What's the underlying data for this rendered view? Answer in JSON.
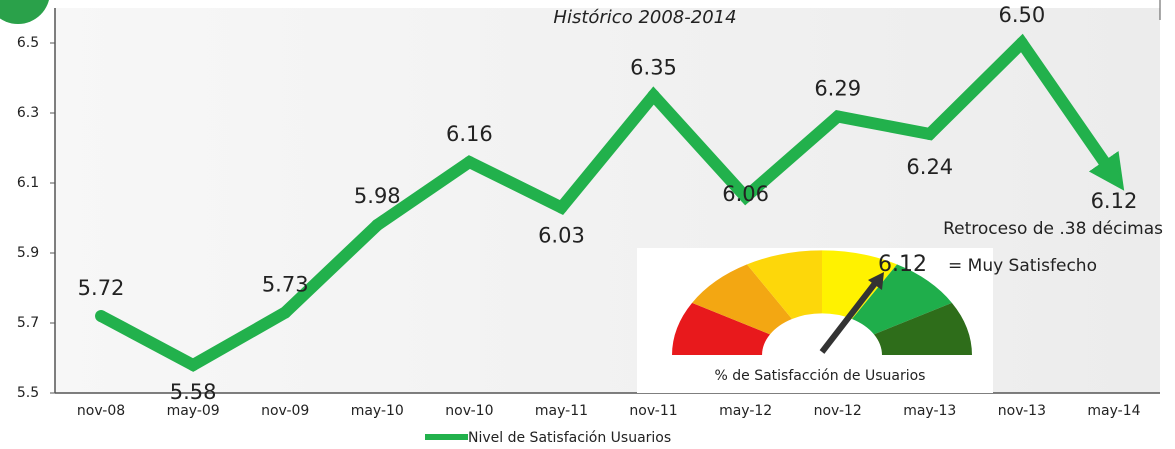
{
  "chart_data": {
    "type": "line",
    "title": "Histórico 2008-2014",
    "categories": [
      "nov-08",
      "may-09",
      "nov-09",
      "may-10",
      "nov-10",
      "may-11",
      "nov-11",
      "may-12",
      "nov-12",
      "may-13",
      "nov-13",
      "may-14"
    ],
    "series": [
      {
        "name": "Nivel de Satisfación Usuarios",
        "color": "#22b14c",
        "values": [
          5.72,
          5.58,
          5.73,
          5.98,
          6.16,
          6.03,
          6.35,
          6.06,
          6.29,
          6.24,
          6.5,
          6.12
        ],
        "value_labels": [
          "5.72",
          "5.58",
          "5.73",
          "5.98",
          "6.16",
          "6.03",
          "6.35",
          "6.06",
          "6.29",
          "6.24",
          "6.50",
          "6.12"
        ]
      }
    ],
    "ylim": [
      5.5,
      6.6
    ],
    "yticks": [
      5.5,
      5.7,
      5.9,
      6.1,
      6.3,
      6.5
    ],
    "grid": false,
    "annotations": [
      "Retroceso de .38 décimas",
      "6.12",
      "= Muy Satisfecho",
      "% de Satisfacción de Usuarios"
    ]
  }
}
